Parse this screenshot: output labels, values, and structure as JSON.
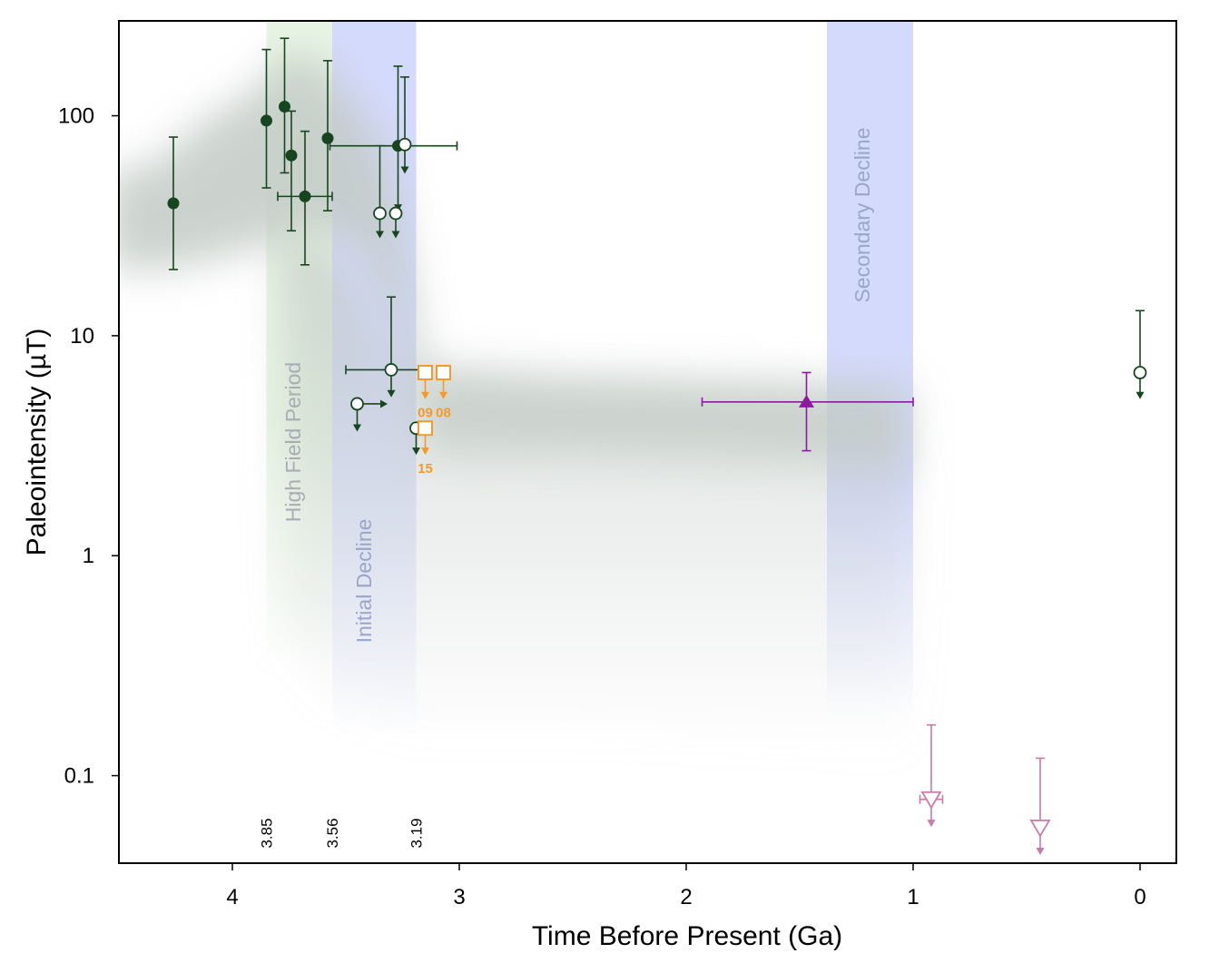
{
  "chart_data": {
    "type": "scatter",
    "xlabel": "Time Before Present (Ga)",
    "ylabel": "Paleointensity (µT)",
    "x_reversed": true,
    "xlim": [
      4.5,
      -0.15
    ],
    "ylim": [
      0.04,
      270
    ],
    "y_scale": "log",
    "x_ticks": [
      4,
      3,
      2,
      1,
      0
    ],
    "x_tick_labels": [
      "4",
      "3",
      "2",
      "1",
      "0"
    ],
    "y_ticks": [
      0.1,
      1,
      10,
      100
    ],
    "y_tick_labels": [
      "0.1",
      "1",
      "10",
      "100"
    ],
    "grid": false,
    "bands": [
      {
        "label": "High Field Period",
        "x_from": 3.85,
        "x_to": 3.56,
        "color": "#e8f5e4",
        "label_color": "#a8adb3"
      },
      {
        "label": "Initial Decline",
        "x_from": 3.56,
        "x_to": 3.19,
        "color": "#d4dafc",
        "label_color": "#9aa6c6"
      },
      {
        "label": "Secondary Decline",
        "x_from": 1.38,
        "x_to": 1.0,
        "color": "#d4dafc",
        "label_color": "#9aa6c6"
      }
    ],
    "age_markers": [
      "3.85",
      "3.56",
      "3.19"
    ],
    "age_marker_values": [
      3.85,
      3.56,
      3.19
    ],
    "envelope_color": "#c3cbc6",
    "series": [
      {
        "marker": "filled-circle",
        "color": "#17451f",
        "points": [
          {
            "x": 4.26,
            "y": 40,
            "ylo": 20,
            "yhi": 80
          },
          {
            "x": 3.85,
            "y": 95,
            "ylo": 47,
            "yhi": 200
          },
          {
            "x": 3.77,
            "y": 110,
            "ylo": 55,
            "yhi": 225
          },
          {
            "x": 3.74,
            "y": 66,
            "ylo": 30,
            "yhi": 105
          },
          {
            "x": 3.68,
            "y": 43,
            "ylo": 21,
            "yhi": 85,
            "xlo": 3.56,
            "xhi": 3.8
          },
          {
            "x": 3.58,
            "y": 79,
            "ylo": 37,
            "yhi": 178
          }
        ]
      },
      {
        "marker": "filled-circle-upper-limit",
        "color": "#17451f",
        "points": [
          {
            "x": 3.27,
            "y": 73,
            "ylo": 37,
            "yhi": 168,
            "xlo": 3.01,
            "xhi": 3.57
          }
        ]
      },
      {
        "marker": "open-circle-upper-limit",
        "color": "#17451f",
        "points": [
          {
            "x": 3.24,
            "y": 74,
            "ylo": 55,
            "yhi": 150
          },
          {
            "x": 3.35,
            "y": 36,
            "ylo": 28,
            "yhi": 73
          },
          {
            "x": 3.28,
            "y": 36,
            "ylo": 28
          },
          {
            "x": 3.3,
            "y": 7,
            "ylo": 5.3,
            "yhi": 15,
            "xlo": 3.13,
            "xhi": 3.5
          },
          {
            "x": 3.45,
            "y": 4.9,
            "ylo": 3.7,
            "arrow_right_to": 3.32
          },
          {
            "x": 3.19,
            "y": 3.8,
            "ylo": 2.9
          },
          {
            "x": 0.0,
            "y": 6.8,
            "ylo": 5.2,
            "yhi": 13
          }
        ]
      },
      {
        "marker": "open-square-upper-limit",
        "color": "#f59a2a",
        "points": [
          {
            "x": 3.15,
            "y": 6.8,
            "ylo": 5.2,
            "label": "09"
          },
          {
            "x": 3.07,
            "y": 6.8,
            "ylo": 5.2,
            "label": "08"
          },
          {
            "x": 3.15,
            "y": 3.8,
            "ylo": 2.9,
            "label": "15"
          }
        ]
      },
      {
        "marker": "filled-triangle",
        "color": "#8b1a9e",
        "points": [
          {
            "x": 1.47,
            "y": 5,
            "ylo": 3,
            "yhi": 6.8,
            "xlo": 1.0,
            "xhi": 1.93
          }
        ]
      },
      {
        "marker": "open-triangle-down-upper-limit",
        "color": "#cc78a8",
        "points": [
          {
            "x": 0.92,
            "y": 0.078,
            "ylo": 0.059,
            "yhi": 0.17,
            "xlo": 0.87,
            "xhi": 0.97
          },
          {
            "x": 0.44,
            "y": 0.058,
            "ylo": 0.044,
            "yhi": 0.12
          }
        ]
      }
    ]
  }
}
